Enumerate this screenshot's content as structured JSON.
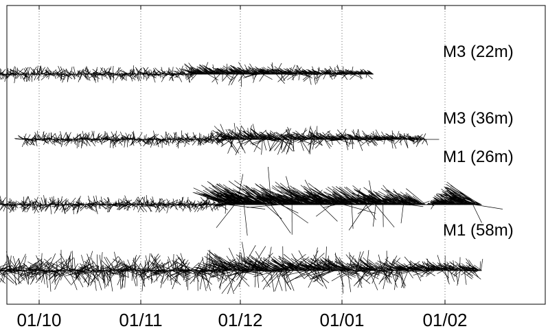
{
  "chart_data": {
    "type": "stick-plot",
    "x_ticks": [
      "01/10",
      "01/11",
      "01/12",
      "01/01",
      "01/02"
    ],
    "grid": "vertical dotted at x ticks",
    "series": [
      {
        "name": "M3 (22m)",
        "start_days": -15,
        "end_days": 102,
        "data_end_days": 102,
        "calm_days": 47,
        "amp_calm": 12,
        "amp_active": 22,
        "bias": 0.7,
        "tilt": -0.55,
        "dir": "up-left"
      },
      {
        "name": "M3 (36m)",
        "start_days": -5,
        "end_days": 122,
        "data_end_days": 118,
        "calm_days": 57,
        "amp_calm": 12,
        "amp_active": 24,
        "bias": 0.5,
        "tilt": 0.35,
        "dir": "up-left"
      },
      {
        "name": "M1 (26m)",
        "start_days": -20,
        "end_days": 135,
        "data_end_days": 135,
        "calm_days": 57,
        "amp_calm": 13,
        "amp_active": 55,
        "bias": 0.92,
        "tilt": -0.65,
        "dir": "up-left"
      },
      {
        "name": "M1 (58m)",
        "start_days": -15,
        "end_days": 135,
        "data_end_days": 135,
        "calm_days": 57,
        "amp_calm": 28,
        "amp_active": 38,
        "bias": 0.55,
        "tilt": -0.55,
        "dir": "up-left"
      }
    ],
    "colors": {
      "sticks": "#000000",
      "axis": "#000000",
      "grid": "#666666"
    }
  }
}
